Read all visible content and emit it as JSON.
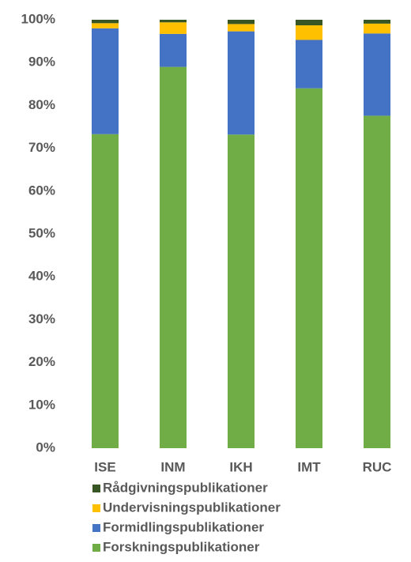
{
  "chart_data": {
    "type": "stacked_bar",
    "categories": [
      "ISE",
      "INM",
      "IKH",
      "IMT",
      "RUC"
    ],
    "series": [
      {
        "name": "Forskningspublikationer",
        "color": "#70ad47",
        "values": [
          73.3,
          89.0,
          73.2,
          84.0,
          77.6
        ]
      },
      {
        "name": "Formidlingspublikationer",
        "color": "#4472c4",
        "values": [
          24.7,
          7.7,
          24.1,
          11.3,
          19.2
        ]
      },
      {
        "name": "Undervisningspublikationer",
        "color": "#ffc000",
        "values": [
          1.2,
          2.7,
          1.7,
          3.4,
          2.3
        ]
      },
      {
        "name": "Rådgivningspublikationer",
        "color": "#375623",
        "values": [
          0.8,
          0.6,
          1.0,
          1.3,
          0.9
        ]
      }
    ],
    "ylim": [
      0,
      100
    ],
    "yticks": [
      {
        "value": 0,
        "label": "0%"
      },
      {
        "value": 10,
        "label": "10%"
      },
      {
        "value": 20,
        "label": "20%"
      },
      {
        "value": 30,
        "label": "30%"
      },
      {
        "value": 40,
        "label": "40%"
      },
      {
        "value": 50,
        "label": "50%"
      },
      {
        "value": 60,
        "label": "60%"
      },
      {
        "value": 70,
        "label": "70%"
      },
      {
        "value": 80,
        "label": "80%"
      },
      {
        "value": 90,
        "label": "90%"
      },
      {
        "value": 100,
        "label": "100%"
      }
    ],
    "legend": "bottom"
  }
}
